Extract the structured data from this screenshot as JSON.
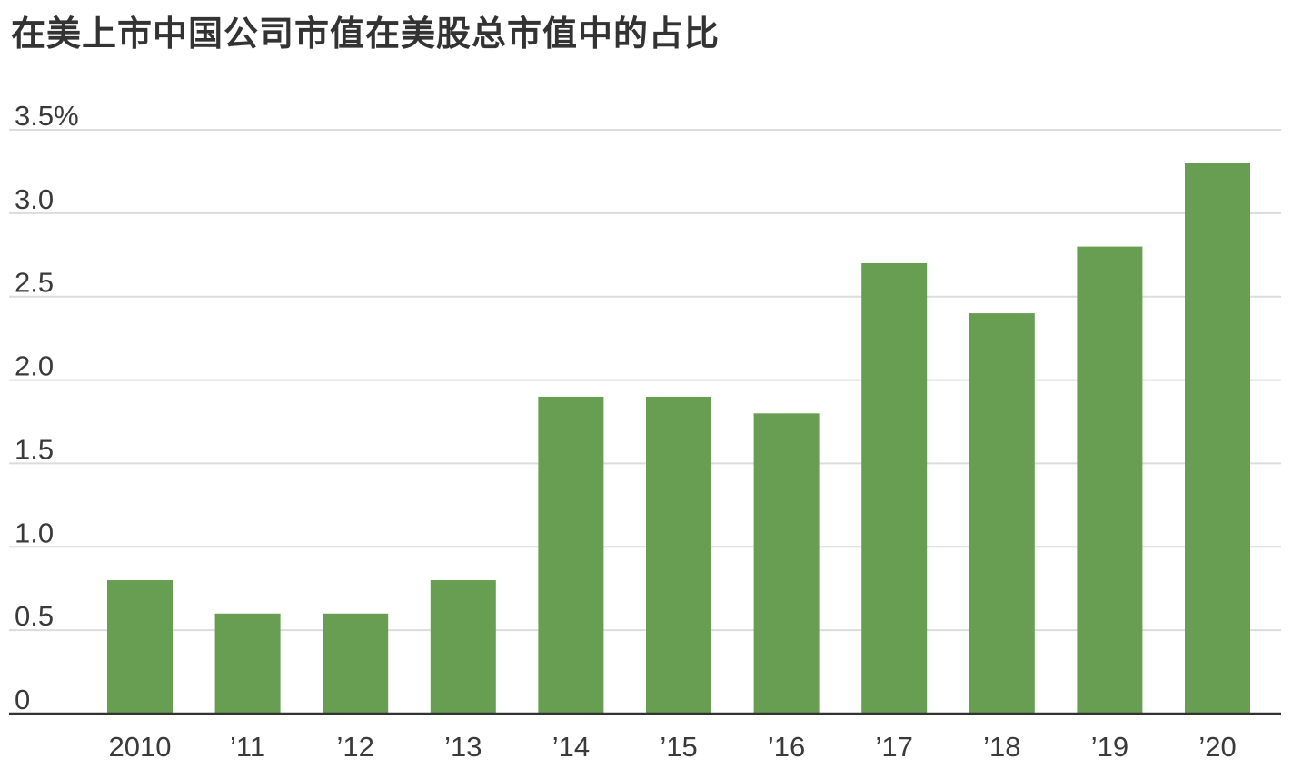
{
  "chart_data": {
    "type": "bar",
    "title": "在美上市中国公司市值在美股总市值中的占比",
    "categories": [
      "2010",
      "’11",
      "’12",
      "’13",
      "’14",
      "’15",
      "’16",
      "’17",
      "’18",
      "’19",
      "’20"
    ],
    "values": [
      0.8,
      0.6,
      0.6,
      0.8,
      1.9,
      1.9,
      1.8,
      2.7,
      2.4,
      2.8,
      3.3
    ],
    "ylim": [
      0,
      3.5
    ],
    "y_ticks": [
      0,
      0.5,
      1.0,
      1.5,
      2.0,
      2.5,
      3.0,
      3.5
    ],
    "y_tick_labels": [
      "0",
      "0.5",
      "1.0",
      "1.5",
      "2.0",
      "2.5",
      "3.0",
      "3.5%"
    ],
    "xlabel": "",
    "ylabel": "",
    "grid": true,
    "bar_color": "#679e51",
    "grid_color": "#dcdcdc",
    "axis_color": "#333333"
  }
}
